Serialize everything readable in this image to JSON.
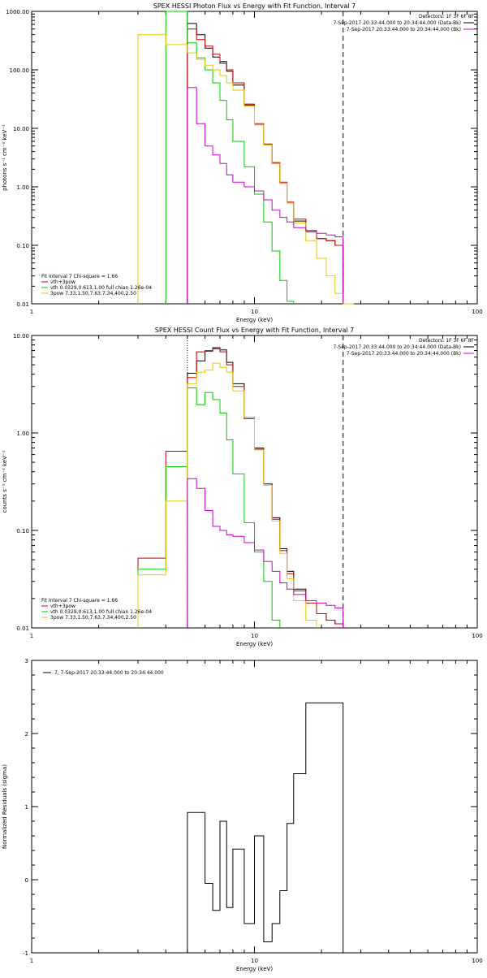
{
  "colors": {
    "total": "#000000",
    "vth_plus_3pow": "#cc0000",
    "vth": "#00cc00",
    "3pow": "#e6c700",
    "background": "#cc00cc",
    "axis": "#000000",
    "residual": "#000000"
  },
  "chart_data": [
    {
      "type": "line",
      "scale": "log-log",
      "title": "SPEX HESSI Photon Flux vs Energy with Fit Function, Interval 7",
      "xlabel": "Energy (keV)",
      "ylabel": "photons s⁻¹ cm⁻² keV⁻¹",
      "xlim": [
        1,
        100
      ],
      "ylim": [
        0.01,
        1000
      ],
      "x_ticks": [
        "1",
        "10",
        "100"
      ],
      "y_ticks": [
        "0.01",
        "0.10",
        "1.00",
        "10.00",
        "100.00",
        "1000.00"
      ],
      "edges": [
        3,
        4,
        5,
        5.5,
        6,
        6.5,
        7,
        7.5,
        8,
        9,
        10,
        11,
        12,
        13,
        14,
        15,
        17,
        19,
        21,
        23,
        25,
        28
      ],
      "header": {
        "detectors": "Detectors: 1F 3F 6F 8F",
        "line1": "7-Sep-2017 20:33:44.000 to 20:34:44.000 (Data-Bk)",
        "line2": "7-Sep-2017 20:33:44.000 to 20:34:44.000 (Bk)"
      },
      "fit_label": "Fit Interval 7   Chi-square = 1.66",
      "legend_position": "bottom-left",
      "legend": [
        {
          "name": "vth+3pow",
          "color": "vth_plus_3pow"
        },
        {
          "name": "vth 0.0329,0.613,1.00  full chian 1.26e-04",
          "color": "vth"
        },
        {
          "name": "3pow 7.33,1.50,7.63,7.34,400,2.50",
          "color": "3pow"
        }
      ],
      "vlines": [
        {
          "x": 5,
          "style": "solid"
        },
        {
          "x": 25,
          "style": "dashed"
        }
      ],
      "series": [
        {
          "color": "total",
          "values": [
            null,
            null,
            620,
            400,
            235,
            165,
            130,
            95,
            55,
            25,
            11.5,
            5.2,
            2.5,
            1.15,
            0.53,
            0.26,
            0.17,
            0.13,
            0.12,
            0.1,
            null
          ]
        },
        {
          "color": "vth_plus_3pow",
          "values": [
            null,
            null,
            500,
            330,
            255,
            185,
            140,
            100,
            60,
            26,
            12,
            5.4,
            2.6,
            1.2,
            0.55,
            0.28,
            0.17,
            0.13,
            0.12,
            0.1,
            null
          ]
        },
        {
          "color": "vth",
          "values": [
            null,
            1000,
            290,
            160,
            100,
            60,
            30,
            14,
            6,
            2.2,
            0.75,
            0.25,
            0.08,
            0.025,
            0.011,
            null,
            null,
            null,
            null,
            null,
            null
          ]
        },
        {
          "color": "3pow",
          "values": [
            400,
            270,
            195,
            150,
            120,
            100,
            80,
            60,
            45,
            24,
            11.5,
            5.2,
            2.5,
            1.15,
            0.53,
            0.24,
            0.12,
            0.06,
            0.03,
            0.015,
            0.009
          ]
        },
        {
          "color": "background",
          "values": [
            null,
            null,
            50,
            12,
            5,
            3.5,
            2.5,
            1.6,
            1.2,
            1.0,
            0.85,
            0.6,
            0.4,
            0.3,
            0.25,
            0.2,
            0.18,
            0.16,
            0.15,
            0.14,
            null
          ]
        }
      ]
    },
    {
      "type": "line",
      "scale": "log-log",
      "title": "SPEX HESSI Count Flux vs Energy with Fit Function, Interval 7",
      "xlabel": "Energy (keV)",
      "ylabel": "counts s⁻¹ cm⁻² keV⁻¹",
      "xlim": [
        1,
        100
      ],
      "ylim": [
        0.01,
        10
      ],
      "x_ticks": [
        "1",
        "10",
        "100"
      ],
      "y_ticks": [
        "0.01",
        "0.10",
        "1.00",
        "10.00"
      ],
      "edges": [
        3,
        4,
        5,
        5.5,
        6,
        6.5,
        7,
        7.5,
        8,
        9,
        10,
        11,
        12,
        13,
        14,
        15,
        17,
        19,
        21,
        23,
        25,
        28
      ],
      "header": {
        "detectors": "Detectors: 1F 3F 6F 8F",
        "line1": "7-Sep-2017 20:33:44.000 to 20:34:44.000 (Data-Bk)",
        "line2": "7-Sep-2017 20:33:44.000 to 20:34:44.000 (Bk)"
      },
      "fit_label": "Fit Interval 7   Chi-square = 1.66",
      "legend_position": "bottom-left",
      "legend": [
        {
          "name": "vth+3pow",
          "color": "vth_plus_3pow"
        },
        {
          "name": "vth 0.0329,0.613,1.00  full chian 1.26e-04",
          "color": "vth"
        },
        {
          "name": "3pow 7.33,1.50,7.63,7.34,400,2.50",
          "color": "3pow"
        }
      ],
      "vlines": [
        {
          "x": 5,
          "style": "dotted"
        },
        {
          "x": 25,
          "style": "dashed"
        }
      ],
      "series": [
        {
          "color": "total",
          "values": [
            null,
            null,
            4.1,
            5.5,
            6.9,
            7.5,
            7.1,
            5.3,
            3.2,
            1.45,
            0.7,
            0.3,
            0.135,
            0.065,
            0.038,
            0.025,
            0.019,
            0.014,
            0.012,
            0.011,
            null
          ]
        },
        {
          "color": "vth_plus_3pow",
          "values": [
            0.052,
            0.65,
            3.7,
            6.8,
            7.0,
            7.3,
            6.8,
            5.0,
            3.0,
            1.4,
            0.68,
            0.29,
            0.13,
            0.062,
            0.036,
            0.024,
            0.018,
            0.014,
            0.012,
            0.011,
            null
          ]
        },
        {
          "color": "vth",
          "values": [
            0.04,
            0.45,
            2.9,
            1.95,
            2.6,
            2.2,
            1.6,
            0.85,
            0.38,
            0.12,
            0.06,
            0.03,
            0.012,
            null,
            null,
            null,
            null,
            null,
            null,
            null,
            null
          ]
        },
        {
          "color": "3pow",
          "values": [
            0.035,
            0.2,
            3.2,
            4.2,
            4.4,
            5.2,
            4.7,
            4.2,
            2.7,
            1.45,
            0.67,
            0.29,
            0.125,
            0.058,
            0.032,
            0.019,
            0.012,
            null,
            null,
            null,
            null
          ]
        },
        {
          "color": "background",
          "values": [
            null,
            null,
            0.34,
            0.27,
            0.16,
            0.11,
            0.1,
            0.09,
            0.087,
            0.075,
            0.063,
            0.048,
            0.038,
            0.029,
            0.025,
            0.022,
            0.019,
            0.018,
            0.017,
            0.016,
            null
          ]
        }
      ]
    },
    {
      "type": "line",
      "scale": "log-x",
      "title": "",
      "xlabel": "Energy (keV)",
      "ylabel": "Normalized Residuals (sigma)",
      "xlim": [
        1,
        100
      ],
      "ylim": [
        -1,
        3
      ],
      "x_ticks": [
        "1",
        "10",
        "100"
      ],
      "y_ticks": [
        "-1",
        "0",
        "1",
        "2",
        "3"
      ],
      "edges": [
        5,
        6,
        6.5,
        7,
        7.5,
        8,
        9,
        10,
        11,
        12,
        13,
        14,
        15,
        17,
        19,
        21,
        23,
        25
      ],
      "legend_position": "top-left",
      "legend": [
        {
          "name": "7,  7-Sep-2017 20:33:44.000 to 20:34:44.000",
          "color": "residual"
        }
      ],
      "series": [
        {
          "color": "residual",
          "values": [
            0.92,
            -0.05,
            -0.42,
            0.8,
            -0.38,
            0.42,
            -0.6,
            0.6,
            -0.85,
            -0.6,
            -0.15,
            0.77,
            1.45,
            2.42,
            2.42,
            2.42,
            2.42
          ]
        }
      ]
    }
  ]
}
